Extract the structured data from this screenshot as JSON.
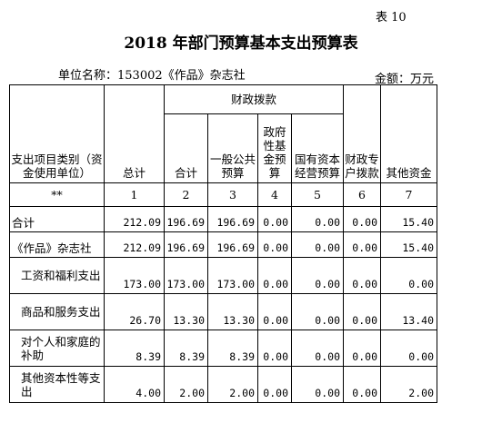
{
  "table_no": "表 10",
  "title": "2018 年部门预算基本支出预算表",
  "unit_label": "单位名称：153002《作品》杂志社",
  "amount_label": "金额：万元",
  "header": {
    "category": "支出项目类别（资金使用单位）",
    "total": "总计",
    "fiscal_group": "财政拨款",
    "sub_total": "合计",
    "general": "一般公共预算",
    "gov_fund": "政府性基金预算",
    "state_capital": "国有资本经营预算",
    "special": "财政专户拨款",
    "other": "其他资金"
  },
  "index_row": [
    "**",
    "1",
    "2",
    "3",
    "4",
    "5",
    "6",
    "7"
  ],
  "rows": [
    {
      "label": "合计",
      "values": [
        "212.09",
        "196.69",
        "196.69",
        "0.00",
        "0.00",
        "0.00",
        "15.40"
      ]
    },
    {
      "label": "《作品》杂志社",
      "values": [
        "212.09",
        "196.69",
        "196.69",
        "0.00",
        "0.00",
        "0.00",
        "15.40"
      ]
    },
    {
      "label": "工资和福利支出",
      "values": [
        "173.00",
        "173.00",
        "173.00",
        "0.00",
        "0.00",
        "0.00",
        "0.00"
      ]
    },
    {
      "label": "商品和服务支出",
      "values": [
        "26.70",
        "13.30",
        "13.30",
        "0.00",
        "0.00",
        "0.00",
        "13.40"
      ]
    },
    {
      "label": "对个人和家庭的补助",
      "values": [
        "8.39",
        "8.39",
        "8.39",
        "0.00",
        "0.00",
        "0.00",
        "0.00"
      ]
    },
    {
      "label": "其他资本性等支出",
      "values": [
        "4.00",
        "2.00",
        "2.00",
        "0.00",
        "0.00",
        "0.00",
        "2.00"
      ]
    }
  ]
}
